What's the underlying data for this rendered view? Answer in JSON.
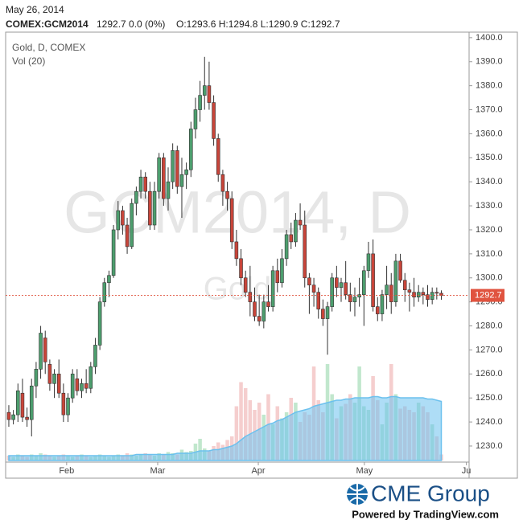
{
  "header": {
    "date": "May 26, 2014",
    "symbol": "COMEX:GCM2014",
    "change": "1292.7 0.0 (0%)",
    "ohlc": "O:1293.6 H:1294.8 L:1290.9 C:1292.7"
  },
  "chart_data": {
    "type": "candlestick",
    "legend_title": "Gold, D, COMEX",
    "volume_label": "Vol (20)",
    "watermark": "GCM2014, D",
    "watermark_sub": "Gold",
    "up_color": "#4d9e6e",
    "down_color": "#c8453a",
    "volume_up_color": "#b6e3c4",
    "volume_down_color": "#f3c6c6",
    "ma_color": "#6cc1ee",
    "last_price": 1292.7,
    "last_price_color": "#e0533f",
    "xlim": [
      -0.7,
      101.1
    ],
    "xticks": [
      {
        "value": 12.7,
        "label": "Feb"
      },
      {
        "value": 32.7,
        "label": "Mar"
      },
      {
        "value": 54.8,
        "label": "Apr"
      },
      {
        "value": 78.1,
        "label": "May"
      },
      {
        "value": 100.5,
        "label": "Ju"
      }
    ],
    "ylim": [
      1223.3,
      1402.3
    ],
    "yticks": [
      {
        "value": 1230,
        "label": "1230.0"
      },
      {
        "value": 1240,
        "label": "1240.0"
      },
      {
        "value": 1250,
        "label": "1250.0"
      },
      {
        "value": 1260,
        "label": "1260.0"
      },
      {
        "value": 1270,
        "label": "1270.0"
      },
      {
        "value": 1280,
        "label": "1280.0"
      },
      {
        "value": 1290,
        "label": "1290.0"
      },
      {
        "value": 1300,
        "label": "1300.0"
      },
      {
        "value": 1310,
        "label": "1310.0"
      },
      {
        "value": 1320,
        "label": "1320.0"
      },
      {
        "value": 1330,
        "label": "1330.0"
      },
      {
        "value": 1340,
        "label": "1340.0"
      },
      {
        "value": 1350,
        "label": "1350.0"
      },
      {
        "value": 1360,
        "label": "1360.0"
      },
      {
        "value": 1370,
        "label": "1370.0"
      },
      {
        "value": 1380,
        "label": "1380.0"
      },
      {
        "value": 1390,
        "label": "1390.0"
      },
      {
        "value": 1400,
        "label": "1400.0"
      }
    ],
    "y2lim": [
      0,
      100
    ],
    "open": [
      1244,
      1241,
      1243,
      1252,
      1242,
      1241,
      1255,
      1262,
      1275,
      1264,
      1256,
      1260,
      1252,
      1243,
      1250,
      1258,
      1253,
      1256,
      1254,
      1263,
      1272,
      1290,
      1298,
      1301,
      1320,
      1328,
      1322,
      1313,
      1331,
      1336,
      1342,
      1336,
      1322,
      1336,
      1350,
      1333,
      1340,
      1353,
      1338,
      1343,
      1345,
      1362,
      1370,
      1376,
      1380,
      1373,
      1358,
      1343,
      1336,
      1333,
      1315,
      1308,
      1300,
      1294,
      1290,
      1284,
      1282,
      1290,
      1288,
      1303,
      1298,
      1308,
      1318,
      1315,
      1324,
      1322,
      1300,
      1297,
      1294,
      1287,
      1283,
      1288,
      1300,
      1296,
      1298,
      1293,
      1290,
      1292,
      1293,
      1303,
      1310,
      1288,
      1285,
      1293,
      1297,
      1290,
      1307,
      1299,
      1295,
      1294,
      1292,
      1294,
      1293,
      1291,
      1294,
      1293.6
    ],
    "high": [
      1247,
      1245,
      1256,
      1258,
      1246,
      1258,
      1265,
      1280,
      1278,
      1266,
      1262,
      1266,
      1256,
      1252,
      1262,
      1262,
      1258,
      1262,
      1265,
      1275,
      1292,
      1300,
      1303,
      1322,
      1332,
      1330,
      1325,
      1333,
      1338,
      1345,
      1344,
      1340,
      1340,
      1352,
      1352,
      1346,
      1356,
      1355,
      1350,
      1348,
      1365,
      1375,
      1382,
      1392,
      1390,
      1376,
      1360,
      1345,
      1340,
      1336,
      1320,
      1312,
      1303,
      1305,
      1296,
      1293,
      1293,
      1297,
      1305,
      1308,
      1312,
      1320,
      1323,
      1327,
      1331,
      1328,
      1302,
      1300,
      1296,
      1291,
      1290,
      1302,
      1305,
      1300,
      1307,
      1298,
      1296,
      1300,
      1305,
      1315,
      1316,
      1292,
      1295,
      1305,
      1302,
      1310,
      1310,
      1302,
      1298,
      1300,
      1297,
      1296,
      1297,
      1296,
      1296,
      1294.8
    ],
    "low": [
      1238,
      1239,
      1240,
      1240,
      1238,
      1234,
      1250,
      1258,
      1260,
      1253,
      1250,
      1250,
      1240,
      1240,
      1248,
      1251,
      1250,
      1252,
      1252,
      1260,
      1270,
      1288,
      1292,
      1300,
      1316,
      1318,
      1310,
      1312,
      1326,
      1333,
      1333,
      1320,
      1320,
      1333,
      1330,
      1328,
      1337,
      1335,
      1325,
      1337,
      1342,
      1358,
      1365,
      1370,
      1370,
      1355,
      1340,
      1330,
      1328,
      1312,
      1305,
      1297,
      1292,
      1284,
      1282,
      1280,
      1279,
      1286,
      1286,
      1294,
      1296,
      1305,
      1312,
      1313,
      1320,
      1296,
      1285,
      1288,
      1283,
      1280,
      1268,
      1286,
      1292,
      1290,
      1291,
      1286,
      1284,
      1288,
      1280,
      1300,
      1286,
      1282,
      1282,
      1287,
      1285,
      1288,
      1298,
      1290,
      1286,
      1288,
      1290,
      1289,
      1288,
      1289,
      1291,
      1290.9
    ],
    "close": [
      1241,
      1243,
      1253,
      1242,
      1241,
      1255,
      1262,
      1277,
      1265,
      1256,
      1260,
      1252,
      1243,
      1250,
      1260,
      1253,
      1256,
      1254,
      1263,
      1272,
      1290,
      1298,
      1301,
      1320,
      1328,
      1322,
      1313,
      1331,
      1336,
      1342,
      1336,
      1322,
      1336,
      1350,
      1333,
      1340,
      1353,
      1338,
      1343,
      1345,
      1362,
      1370,
      1376,
      1380,
      1373,
      1358,
      1343,
      1336,
      1333,
      1315,
      1308,
      1300,
      1294,
      1290,
      1284,
      1282,
      1290,
      1288,
      1303,
      1298,
      1308,
      1318,
      1315,
      1324,
      1322,
      1300,
      1297,
      1294,
      1287,
      1283,
      1288,
      1300,
      1296,
      1298,
      1293,
      1290,
      1292,
      1293,
      1303,
      1310,
      1288,
      1285,
      1293,
      1297,
      1290,
      1307,
      1299,
      1295,
      1294,
      1292,
      1294,
      1293,
      1291,
      1294,
      1293.6,
      1292.7
    ],
    "volume": [
      4,
      3,
      5,
      4,
      3,
      5,
      4,
      6,
      5,
      4,
      3,
      4,
      5,
      4,
      3,
      4,
      5,
      4,
      3,
      4,
      5,
      4,
      3,
      4,
      5,
      4,
      6,
      5,
      4,
      5,
      6,
      5,
      4,
      6,
      5,
      7,
      6,
      5,
      9,
      7,
      8,
      14,
      18,
      10,
      8,
      12,
      15,
      13,
      17,
      20,
      45,
      65,
      60,
      50,
      42,
      48,
      38,
      55,
      30,
      45,
      35,
      40,
      52,
      48,
      32,
      40,
      38,
      78,
      50,
      40,
      80,
      55,
      35,
      45,
      47,
      55,
      48,
      78,
      45,
      42,
      70,
      50,
      30,
      48,
      80,
      55,
      43,
      45,
      42,
      40,
      48,
      45,
      40,
      30,
      20,
      5
    ],
    "volume_ma": [
      4,
      4,
      4,
      4,
      4,
      4,
      4,
      4,
      4,
      4,
      4,
      4,
      4,
      4,
      4,
      4,
      4,
      4,
      4,
      4,
      4,
      4,
      4,
      4,
      4,
      4,
      4,
      4,
      5,
      5,
      5,
      5,
      5,
      5,
      5,
      5,
      5,
      6,
      6,
      6,
      6,
      7,
      8,
      8,
      8,
      9,
      9,
      10,
      11,
      12,
      14,
      17,
      20,
      22,
      24,
      26,
      28,
      30,
      31,
      33,
      34,
      36,
      38,
      40,
      41,
      42,
      43,
      45,
      46,
      47,
      48,
      49,
      50,
      50,
      51,
      51,
      52,
      52,
      52,
      52,
      53,
      53,
      52,
      52,
      53,
      53,
      52,
      52,
      52,
      52,
      52,
      52,
      51,
      51,
      50,
      49
    ]
  },
  "footer": {
    "logo": "CME Group",
    "powered": "Powered by TradingView.com"
  }
}
